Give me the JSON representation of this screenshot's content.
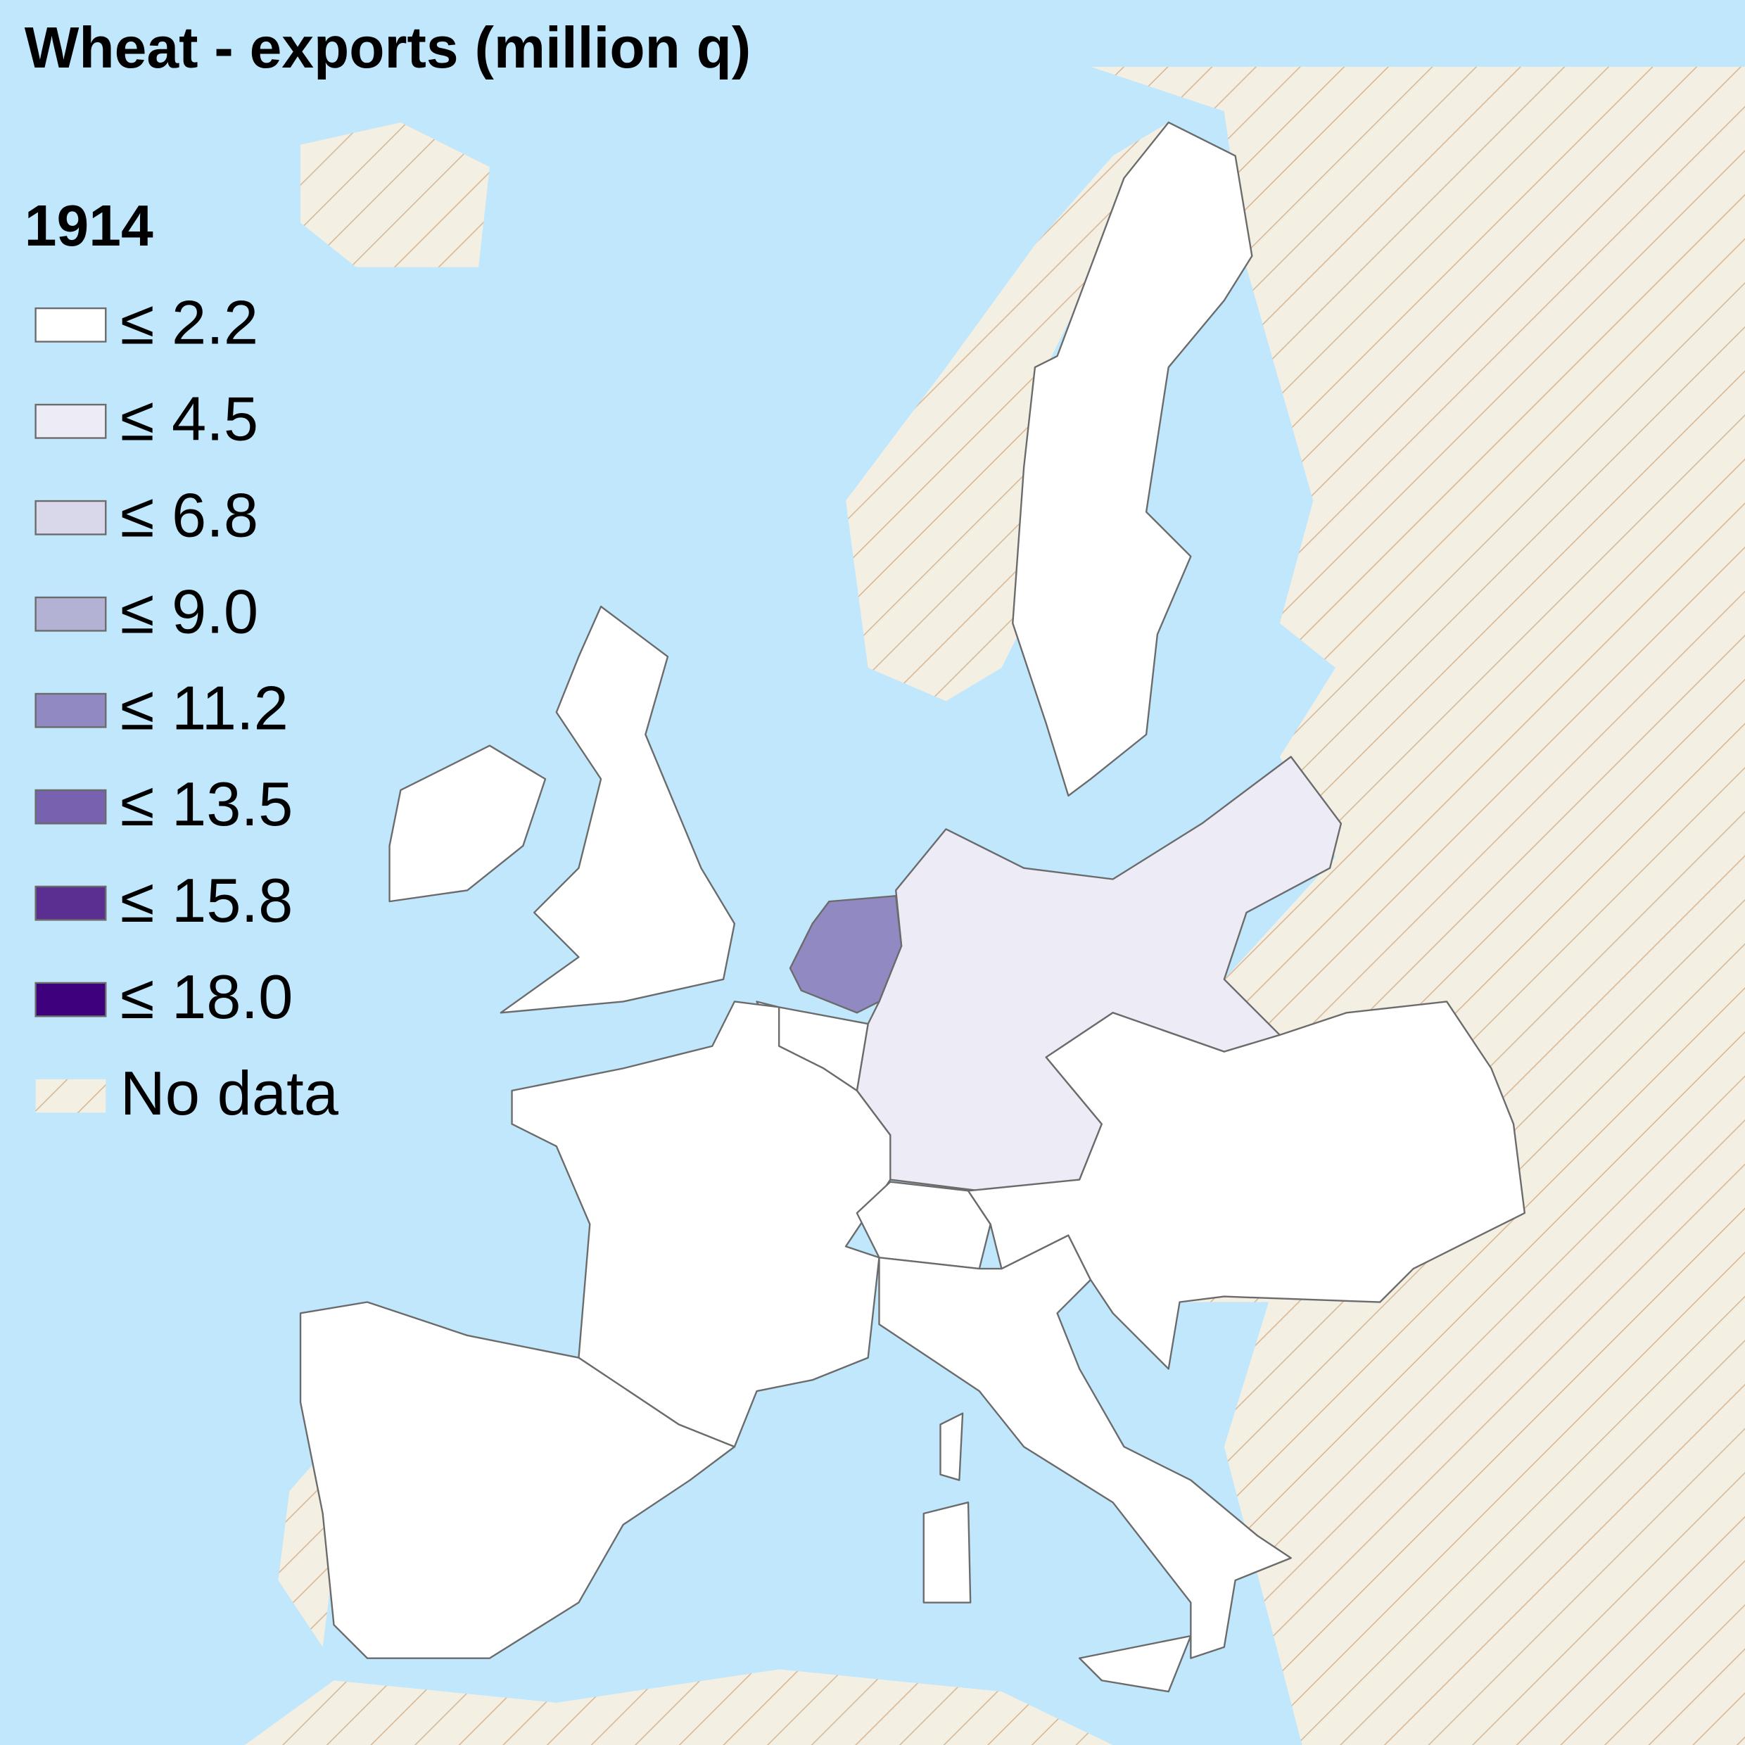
{
  "title": "Wheat - exports (million q)",
  "legend": {
    "title": "1914",
    "items": [
      {
        "label": "≤ 2.2",
        "color": "#ffffff"
      },
      {
        "label": "≤ 4.5",
        "color": "#edebf5"
      },
      {
        "label": "≤ 6.8",
        "color": "#d9d8ea"
      },
      {
        "label": "≤ 9.0",
        "color": "#b3b1d4"
      },
      {
        "label": "≤ 11.2",
        "color": "#9189c2"
      },
      {
        "label": "≤ 13.5",
        "color": "#7662ae"
      },
      {
        "label": "≤ 15.8",
        "color": "#5b2e92"
      },
      {
        "label": "≤ 18.0",
        "color": "#3f007d"
      }
    ],
    "no_data": {
      "label": "No data",
      "color": "#f4efe3"
    }
  }
}
